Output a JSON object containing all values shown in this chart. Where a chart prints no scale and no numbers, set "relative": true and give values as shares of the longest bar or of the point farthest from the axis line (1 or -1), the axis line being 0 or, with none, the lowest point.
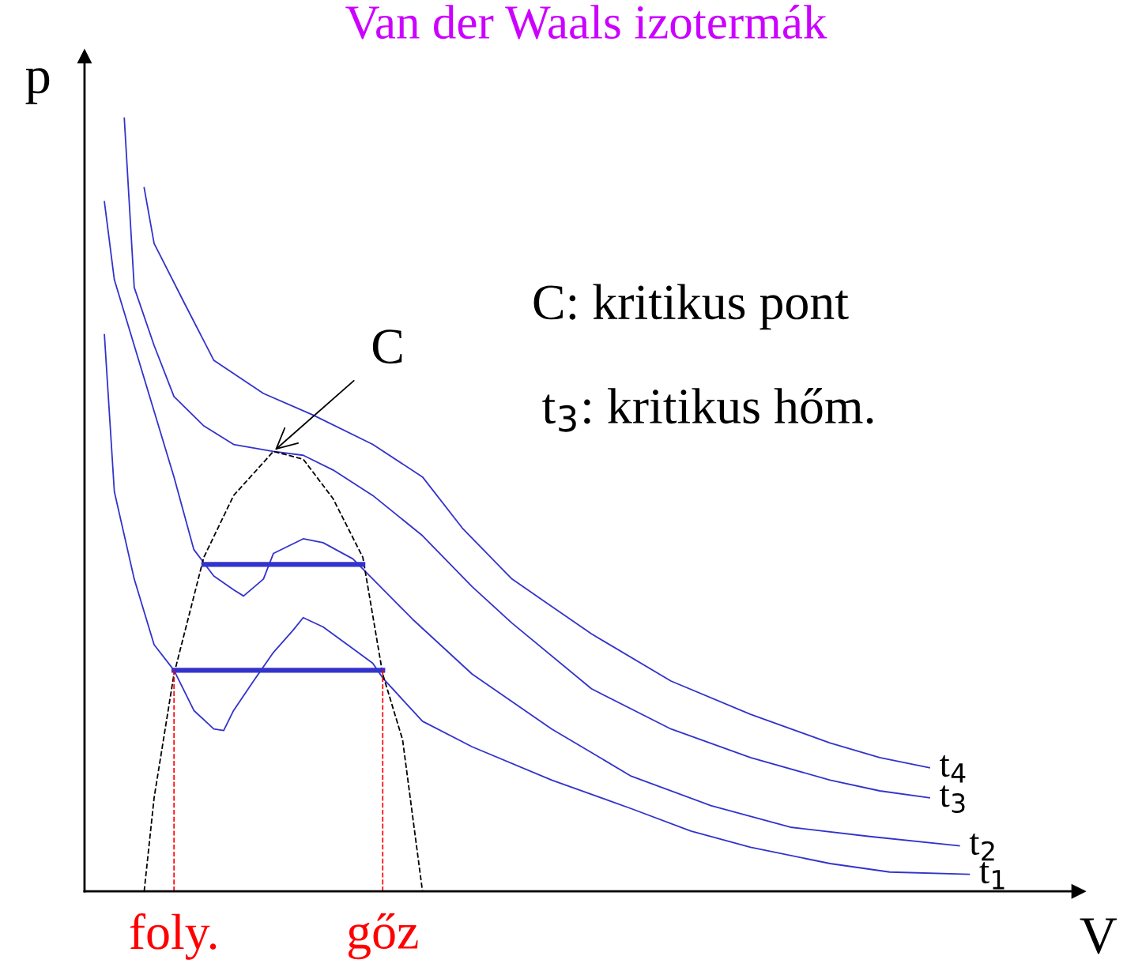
{
  "chart_data": {
    "type": "line",
    "relative": true,
    "title": "Van der Waals izotermák",
    "xlabel": "V",
    "ylabel": "p",
    "categories": [
      null,
      null,
      null,
      null,
      null,
      null,
      null,
      null,
      null,
      null,
      null,
      null,
      null,
      null,
      null,
      null,
      null,
      null,
      null,
      null,
      null,
      null,
      null,
      null,
      null,
      null,
      null,
      null,
      null,
      null,
      null,
      null,
      null,
      null,
      null,
      null,
      null,
      null,
      null,
      null,
      null,
      null,
      null,
      null,
      null,
      null,
      null,
      null,
      null,
      null,
      null,
      null,
      null,
      null,
      null,
      null,
      null,
      null,
      null,
      null,
      null,
      null,
      null,
      null,
      null,
      null,
      null,
      null,
      null,
      null,
      null,
      null,
      null,
      null,
      null,
      null,
      null,
      null,
      null,
      null,
      null,
      null,
      null,
      null,
      null,
      null,
      null,
      null,
      null,
      null,
      null,
      null,
      null,
      null,
      null,
      null,
      null,
      null,
      null,
      null,
      null
    ],
    "series": [
      {
        "name": "t$_{1}$",
        "color": "#3333cc",
        "line_style": "solid",
        "values": [
          null,
          null,
          0.72,
          0.517,
          null,
          0.404,
          null,
          0.319,
          null,
          0.286,
          null,
          0.234,
          null,
          0.21,
          0.208,
          0.234,
          null,
          0.272,
          null,
          0.309,
          null,
          0.338,
          0.354,
          null,
          0.342,
          null,
          null,
          0.314,
          null,
          0.295,
          0.276,
          null,
          0.248,
          null,
          0.22,
          null,
          null,
          null,
          null,
          0.187,
          null,
          null,
          null,
          null,
          null,
          null,
          null,
          0.144,
          null,
          null,
          null,
          null,
          null,
          null,
          null,
          0.107,
          null,
          null,
          null,
          null,
          null,
          0.078,
          null,
          null,
          null,
          null,
          null,
          0.057,
          null,
          null,
          null,
          null,
          null,
          null,
          null,
          0.036,
          null,
          null,
          null,
          null,
          null,
          0.025,
          null,
          null,
          null,
          null,
          null,
          null,
          null,
          0.022,
          null,
          null,
          null,
          null,
          null,
          null,
          null,
          null,
          null,
          null,
          null
        ]
      },
      {
        "name": "t$_{2}$",
        "color": "#3333cc",
        "line_style": "solid",
        "values": [
          null,
          null,
          0.892,
          0.791,
          null,
          0.706,
          null,
          0.621,
          null,
          0.536,
          null,
          0.442,
          null,
          0.408,
          null,
          0.39,
          0.382,
          null,
          0.404,
          0.437,
          null,
          null,
          0.456,
          null,
          0.451,
          null,
          null,
          0.43,
          null,
          0.404,
          null,
          null,
          null,
          0.352,
          null,
          null,
          null,
          null,
          null,
          0.281,
          null,
          null,
          null,
          null,
          null,
          null,
          null,
          0.21,
          null,
          null,
          null,
          null,
          null,
          null,
          null,
          0.149,
          null,
          null,
          null,
          null,
          null,
          null,
          null,
          0.111,
          null,
          null,
          null,
          null,
          null,
          null,
          null,
          0.083,
          null,
          null,
          null,
          null,
          null,
          null,
          null,
          0.071,
          null,
          null,
          null,
          null,
          null,
          null,
          null,
          null,
          0.059,
          null,
          null,
          null,
          null,
          null,
          null,
          null,
          null,
          null,
          null,
          null,
          null
        ]
      },
      {
        "name": "t$_{3}$",
        "color": "#3333cc",
        "line_style": "solid",
        "values": [
          null,
          null,
          null,
          null,
          1.0,
          0.781,
          null,
          0.706,
          null,
          0.64,
          null,
          null,
          0.602,
          null,
          null,
          0.578,
          null,
          null,
          null,
          0.569,
          null,
          null,
          0.564,
          null,
          null,
          0.545,
          null,
          null,
          null,
          0.512,
          null,
          null,
          null,
          null,
          0.46,
          null,
          null,
          null,
          null,
          0.394,
          null,
          null,
          null,
          0.347,
          null,
          null,
          null,
          null,
          null,
          null,
          null,
          0.262,
          null,
          null,
          null,
          null,
          null,
          null,
          null,
          0.21,
          null,
          null,
          null,
          null,
          null,
          null,
          null,
          0.173,
          null,
          null,
          null,
          null,
          null,
          null,
          null,
          0.144,
          null,
          null,
          null,
          null,
          0.13,
          null,
          null,
          null,
          null,
          0.121,
          null,
          null,
          null,
          null,
          null,
          null,
          null,
          null,
          null,
          null,
          null,
          null,
          null,
          null,
          null
        ]
      },
      {
        "name": "t$_{4}$",
        "color": "#3333cc",
        "line_style": "solid",
        "values": [
          null,
          null,
          null,
          null,
          null,
          null,
          0.91,
          0.838,
          null,
          null,
          0.762,
          null,
          null,
          0.687,
          null,
          null,
          null,
          null,
          0.644,
          null,
          null,
          null,
          null,
          0.616,
          null,
          null,
          null,
          null,
          null,
          0.578,
          null,
          null,
          null,
          null,
          0.536,
          null,
          null,
          null,
          0.47,
          null,
          null,
          null,
          null,
          0.404,
          null,
          null,
          null,
          null,
          null,
          null,
          null,
          0.333,
          null,
          null,
          null,
          null,
          null,
          null,
          null,
          0.272,
          null,
          null,
          null,
          null,
          null,
          null,
          null,
          0.229,
          null,
          null,
          null,
          null,
          null,
          null,
          null,
          0.192,
          null,
          null,
          null,
          null,
          0.173,
          null,
          null,
          null,
          null,
          0.16,
          null,
          null,
          null,
          null,
          null,
          null,
          null,
          null,
          null,
          null,
          null,
          null,
          null,
          null,
          null
        ]
      },
      {
        "color": "#000000",
        "line_style": "dashed",
        "values": [
          null,
          null,
          null,
          null,
          null,
          null,
          0,
          0.121,
          null,
          0.281,
          null,
          null,
          0.432,
          null,
          null,
          0.512,
          null,
          null,
          null,
          0.569,
          null,
          null,
          0.559,
          null,
          null,
          0.508,
          null,
          null,
          0.432,
          null,
          0.281,
          null,
          0.196,
          null,
          0,
          null,
          null,
          null,
          null,
          null,
          null,
          null,
          null,
          null,
          null,
          null,
          null,
          null,
          null,
          null,
          null,
          null,
          null,
          null,
          null,
          null,
          null,
          null,
          null,
          null,
          null,
          null,
          null,
          null,
          null,
          null,
          null,
          null,
          null,
          null,
          null,
          null,
          null,
          null,
          null,
          null,
          null,
          null,
          null,
          null,
          null,
          null,
          null,
          null,
          null,
          null,
          null,
          null,
          null,
          null,
          null,
          null,
          null,
          null,
          null,
          null,
          null,
          null,
          null,
          null,
          null
        ]
      },
      {
        "color": "#3333cc",
        "line_style": "solid",
        "values": [
          null,
          null,
          null,
          null,
          null,
          null,
          null,
          null,
          null,
          null,
          null,
          null,
          0.423,
          null,
          null,
          null,
          null,
          null,
          null,
          null,
          null,
          null,
          null,
          null,
          null,
          null,
          null,
          null,
          0.423,
          null,
          null,
          null,
          null,
          null,
          null,
          null,
          null,
          null,
          null,
          null,
          null,
          null,
          null,
          null,
          null,
          null,
          null,
          null,
          null,
          null,
          null,
          null,
          null,
          null,
          null,
          null,
          null,
          null,
          null,
          null,
          null,
          null,
          null,
          null,
          null,
          null,
          null,
          null,
          null,
          null,
          null,
          null,
          null,
          null,
          null,
          null,
          null,
          null,
          null,
          null,
          null,
          null,
          null,
          null,
          null,
          null,
          null,
          null,
          null,
          null,
          null,
          null,
          null,
          null,
          null,
          null,
          null,
          null,
          null,
          null,
          null
        ]
      },
      {
        "color": "#3333cc",
        "line_style": "solid",
        "values": [
          null,
          null,
          null,
          null,
          null,
          null,
          null,
          null,
          null,
          0.286,
          null,
          null,
          null,
          null,
          null,
          null,
          null,
          null,
          null,
          null,
          null,
          null,
          null,
          null,
          null,
          null,
          null,
          null,
          null,
          null,
          0.286,
          null,
          null,
          null,
          null,
          null,
          null,
          null,
          null,
          null,
          null,
          null,
          null,
          null,
          null,
          null,
          null,
          null,
          null,
          null,
          null,
          null,
          null,
          null,
          null,
          null,
          null,
          null,
          null,
          null,
          null,
          null,
          null,
          null,
          null,
          null,
          null,
          null,
          null,
          null,
          null,
          null,
          null,
          null,
          null,
          null,
          null,
          null,
          null,
          null,
          null,
          null,
          null,
          null,
          null,
          null,
          null,
          null,
          null,
          null,
          null,
          null,
          null,
          null,
          null,
          null,
          null,
          null,
          null,
          null,
          null
        ]
      }
    ],
    "annotations": [
      {
        "text": "C",
        "y": 0.569
      },
      "C: kritikus pont",
      "t$_{3}$: kritikus hőm.",
      "foly.",
      "gőz"
    ]
  }
}
